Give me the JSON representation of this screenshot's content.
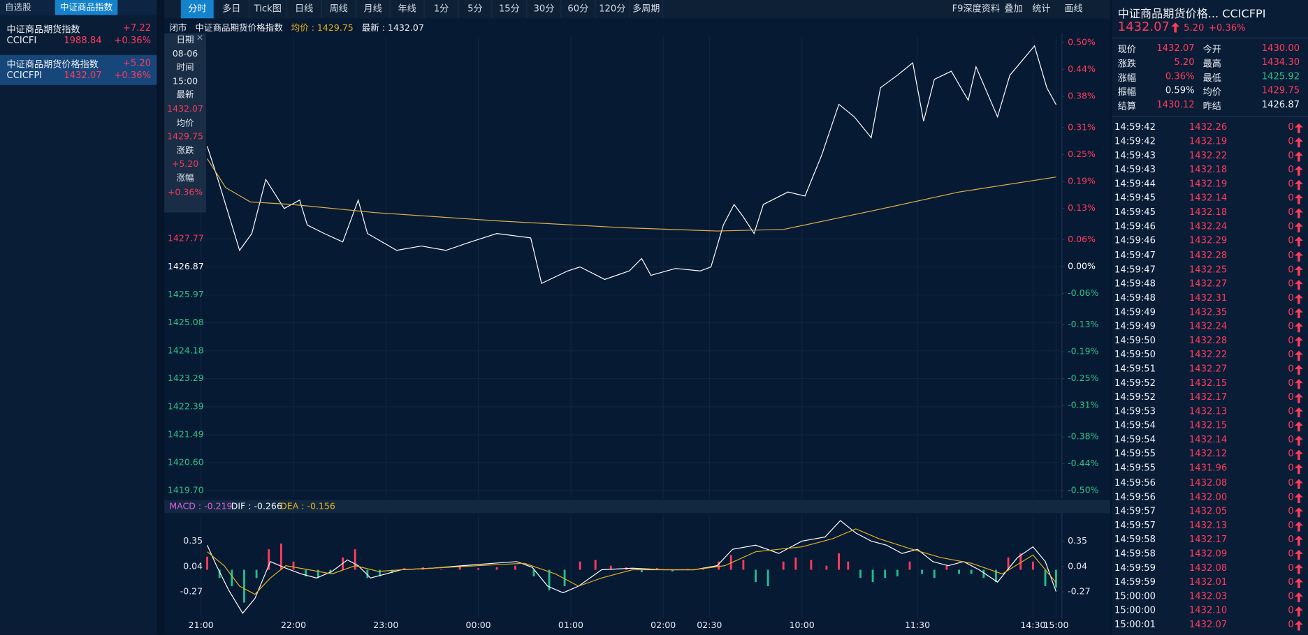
{
  "watchlist": {
    "tabs": [
      "自选股",
      "中证商品指数"
    ],
    "items": [
      {
        "name": "中证商品期货指数",
        "change": "+7.22",
        "code": "CCICFI",
        "price": "1988.84",
        "pct": "+0.36%"
      },
      {
        "name": "中证商品期货价格指数",
        "change": "+5.20",
        "code": "CCICFPI",
        "price": "1432.07",
        "pct": "+0.36%"
      }
    ]
  },
  "toolbar": {
    "left": [
      "分时",
      "多日",
      "Tick图",
      "日线",
      "周线",
      "月线",
      "年线",
      "1分",
      "5分",
      "15分",
      "30分",
      "60分",
      "120分",
      "多周期"
    ],
    "right": [
      "F9深度资料",
      "叠加",
      "统计",
      "画线"
    ]
  },
  "info_bar": {
    "status": "闭市",
    "name": "中证商品期货价格指数",
    "avg": "均价 : 1429.75",
    "last": "最新 : 1432.07"
  },
  "tooltip": [
    [
      "日期",
      "08-06"
    ],
    [
      "时间",
      "15:00"
    ],
    [
      "最新",
      "1432.07"
    ],
    [
      "均价",
      "1429.75"
    ],
    [
      "涨跌",
      "+5.20"
    ],
    [
      "涨幅",
      "+0.36%"
    ]
  ],
  "macd_header": [
    "MACD : -0.219",
    "DIF : -0.266",
    "DEA : -0.156"
  ],
  "quote": {
    "title": "中证商品期货价格... CCICFPI",
    "price": "1432.07",
    "change": "5.20",
    "pct": "+0.36%",
    "rows": [
      [
        "现价",
        "1432.07",
        "今开",
        "1430.00"
      ],
      [
        "涨跌",
        "5.20",
        "最高",
        "1434.30"
      ],
      [
        "涨幅",
        "0.36%",
        "最低",
        "1425.92"
      ],
      [
        "振幅",
        "0.59%",
        "均价",
        "1429.75"
      ],
      [
        "结算",
        "1430.12",
        "昨结",
        "1426.87"
      ]
    ]
  },
  "ticks": [
    [
      "14:59:42",
      "1432.26",
      "0"
    ],
    [
      "14:59:42",
      "1432.19",
      "0"
    ],
    [
      "14:59:43",
      "1432.22",
      "0"
    ],
    [
      "14:59:43",
      "1432.18",
      "0"
    ],
    [
      "14:59:44",
      "1432.19",
      "0"
    ],
    [
      "14:59:45",
      "1432.14",
      "0"
    ],
    [
      "14:59:45",
      "1432.18",
      "0"
    ],
    [
      "14:59:46",
      "1432.24",
      "0"
    ],
    [
      "14:59:46",
      "1432.29",
      "0"
    ],
    [
      "14:59:47",
      "1432.28",
      "0"
    ],
    [
      "14:59:47",
      "1432.25",
      "0"
    ],
    [
      "14:59:48",
      "1432.27",
      "0"
    ],
    [
      "14:59:48",
      "1432.31",
      "0"
    ],
    [
      "14:59:49",
      "1432.35",
      "0"
    ],
    [
      "14:59:49",
      "1432.24",
      "0"
    ],
    [
      "14:59:50",
      "1432.28",
      "0"
    ],
    [
      "14:59:50",
      "1432.22",
      "0"
    ],
    [
      "14:59:51",
      "1432.27",
      "0"
    ],
    [
      "14:59:52",
      "1432.15",
      "0"
    ],
    [
      "14:59:52",
      "1432.17",
      "0"
    ],
    [
      "14:59:53",
      "1432.13",
      "0"
    ],
    [
      "14:59:54",
      "1432.15",
      "0"
    ],
    [
      "14:59:54",
      "1432.14",
      "0"
    ],
    [
      "14:59:55",
      "1432.12",
      "0"
    ],
    [
      "14:59:55",
      "1431.96",
      "0"
    ],
    [
      "14:59:56",
      "1432.08",
      "0"
    ],
    [
      "14:59:56",
      "1432.00",
      "0"
    ],
    [
      "14:59:57",
      "1432.05",
      "0"
    ],
    [
      "14:59:57",
      "1432.13",
      "0"
    ],
    [
      "14:59:58",
      "1432.17",
      "0"
    ],
    [
      "14:59:58",
      "1432.09",
      "0"
    ],
    [
      "14:59:59",
      "1432.08",
      "0"
    ],
    [
      "14:59:59",
      "1432.01",
      "0"
    ],
    [
      "15:00:00",
      "1432.03",
      "0"
    ],
    [
      "15:00:00",
      "1432.10",
      "0"
    ],
    [
      "15:00:01",
      "1432.07",
      "0"
    ]
  ],
  "chart_data": [
    {
      "type": "line",
      "xlim": [
        0,
        555
      ],
      "xticks": [
        {
          "value": 0,
          "label": "21:00"
        },
        {
          "value": 60,
          "label": "22:00"
        },
        {
          "value": 120,
          "label": "23:00"
        },
        {
          "value": 180,
          "label": "00:00"
        },
        {
          "value": 240,
          "label": "01:00"
        },
        {
          "value": 300,
          "label": "02:00"
        },
        {
          "value": 330,
          "label": "02:30"
        },
        {
          "value": 390,
          "label": "10:00"
        },
        {
          "value": 465,
          "label": "11:30"
        },
        {
          "value": 540,
          "label": "14:30"
        },
        {
          "value": 555,
          "label": "15:00"
        }
      ],
      "ylim": [
        1419.7,
        1434.06
      ],
      "yticks": [
        1427.77,
        1426.87,
        1425.97,
        1425.08,
        1424.18,
        1423.29,
        1422.39,
        1421.49,
        {
          "value": 1420.6,
          "label": "1420.60"
        },
        {
          "value": 1419.7,
          "label": "1419.70"
        }
      ],
      "y2lim": [
        -0.5,
        0.5
      ],
      "y2ticks": [
        {
          "value": 0.5,
          "label": "0.50%"
        },
        {
          "value": 0.44,
          "label": "0.44%"
        },
        {
          "value": 0.38,
          "label": "0.38%"
        },
        {
          "value": 0.31,
          "label": "0.31%"
        },
        {
          "value": 0.25,
          "label": "0.25%"
        },
        {
          "value": 0.19,
          "label": "0.19%"
        },
        {
          "value": 0.13,
          "label": "0.13%"
        },
        {
          "value": 0.06,
          "label": "0.06%"
        },
        {
          "value": 0,
          "label": "0.00%"
        },
        {
          "value": -0.06,
          "label": "-0.06%"
        },
        {
          "value": -0.13,
          "label": "-0.13%"
        },
        {
          "value": -0.19,
          "label": "-0.19%"
        },
        {
          "value": -0.25,
          "label": "-0.25%"
        },
        {
          "value": -0.31,
          "label": "-0.31%"
        },
        {
          "value": -0.38,
          "label": "-0.38%"
        },
        {
          "value": -0.44,
          "label": "-0.44%"
        },
        {
          "value": -0.5,
          "label": "-0.50%"
        }
      ],
      "grid": true,
      "up_color": "#ff3b5c",
      "down_color": "#2ec28a",
      "series": [
        {
          "color": "#ffffff",
          "x": [
            4,
            11,
            25,
            33,
            42,
            54,
            64,
            69,
            80,
            92,
            102,
            108,
            127,
            143,
            159,
            175,
            192,
            214,
            221,
            238,
            246,
            262,
            278,
            286,
            292,
            308,
            324,
            331,
            339,
            346,
            352,
            359,
            365,
            381,
            392,
            403,
            414,
            424,
            435,
            441,
            452,
            462,
            469,
            476,
            487,
            498,
            503,
            517,
            525,
            541,
            549,
            555
          ],
          "values": [
            1430.74,
            1429.67,
            1427.4,
            1427.94,
            1429.67,
            1428.74,
            1429.01,
            1428.21,
            1427.94,
            1427.67,
            1429.01,
            1427.94,
            1427.4,
            1427.54,
            1427.4,
            1427.67,
            1427.94,
            1427.8,
            1426.34,
            1426.74,
            1426.87,
            1426.47,
            1426.74,
            1427.14,
            1426.6,
            1426.82,
            1426.74,
            1426.87,
            1428.21,
            1428.87,
            1428.47,
            1427.94,
            1428.87,
            1429.27,
            1429.14,
            1430.47,
            1432.08,
            1431.68,
            1431.01,
            1432.61,
            1433.01,
            1433.41,
            1431.54,
            1432.88,
            1433.14,
            1432.21,
            1433.28,
            1431.68,
            1433.01,
            1433.95,
            1432.61,
            1432.07
          ]
        },
        {
          "color": "#e0b04c",
          "x": [
            4,
            16,
            32,
            59,
            113,
            194,
            276,
            335,
            378,
            438,
            492,
            555
          ],
          "values": [
            1430.34,
            1429.41,
            1428.95,
            1428.87,
            1428.61,
            1428.34,
            1428.12,
            1428.02,
            1428.07,
            1428.69,
            1429.27,
            1429.75
          ]
        }
      ]
    },
    {
      "type": "macd",
      "xlim": [
        0,
        555
      ],
      "ylim": [
        -0.57,
        0.65
      ],
      "yticks": [
        0.35,
        0.04,
        -0.27
      ],
      "up_color": "#ff3b5c",
      "down_color": "#1fbf8f",
      "series": [
        {
          "color": "#ffffff",
          "x": [
            4,
            10,
            18,
            27,
            35,
            45,
            55,
            65,
            75,
            85,
            95,
            102,
            110,
            120,
            130,
            150,
            170,
            190,
            205,
            215,
            225,
            235,
            245,
            260,
            280,
            300,
            320,
            335,
            345,
            360,
            375,
            390,
            405,
            415,
            425,
            435,
            445,
            455,
            465,
            475,
            485,
            495,
            505,
            517,
            530,
            540,
            548,
            555
          ],
          "values": [
            0.3,
            0.05,
            -0.25,
            -0.53,
            -0.35,
            0.1,
            0.02,
            -0.05,
            -0.1,
            -0.02,
            0.12,
            0.05,
            -0.1,
            -0.05,
            0.0,
            0.02,
            0.05,
            0.08,
            0.1,
            0.03,
            -0.2,
            -0.28,
            -0.2,
            0.0,
            0.02,
            0.0,
            0.0,
            0.05,
            0.25,
            0.3,
            0.2,
            0.35,
            0.4,
            0.6,
            0.45,
            0.35,
            0.3,
            0.2,
            0.25,
            0.1,
            0.05,
            0.1,
            0.0,
            -0.15,
            0.15,
            0.28,
            0.1,
            -0.266
          ]
        },
        {
          "color": "#e6b020",
          "x": [
            4,
            15,
            25,
            35,
            45,
            55,
            70,
            85,
            100,
            115,
            130,
            160,
            190,
            210,
            230,
            245,
            260,
            280,
            320,
            340,
            360,
            390,
            410,
            425,
            440,
            460,
            480,
            500,
            520,
            540,
            555
          ],
          "values": [
            0.22,
            0.05,
            -0.2,
            -0.3,
            -0.1,
            0.05,
            0.0,
            -0.05,
            0.05,
            -0.02,
            0.0,
            0.03,
            0.06,
            0.08,
            -0.05,
            -0.2,
            -0.1,
            0.0,
            0.0,
            0.05,
            0.22,
            0.28,
            0.38,
            0.5,
            0.38,
            0.26,
            0.15,
            0.08,
            -0.05,
            0.18,
            -0.156
          ]
        }
      ],
      "bars": {
        "x": [
          4,
          12,
          20,
          28,
          36,
          44,
          52,
          60,
          68,
          76,
          84,
          92,
          100,
          108,
          116,
          124,
          132,
          144,
          156,
          168,
          180,
          192,
          204,
          216,
          226,
          236,
          246,
          256,
          266,
          276,
          286,
          296,
          306,
          316,
          326,
          336,
          344,
          352,
          360,
          368,
          378,
          386,
          396,
          406,
          414,
          420,
          428,
          436,
          444,
          452,
          460,
          468,
          476,
          484,
          492,
          500,
          508,
          516,
          524,
          532,
          540,
          548,
          555
        ],
        "values": [
          0.16,
          -0.1,
          -0.2,
          -0.4,
          -0.1,
          0.25,
          0.32,
          0.1,
          -0.08,
          -0.1,
          -0.05,
          0.15,
          0.25,
          -0.1,
          -0.08,
          -0.04,
          0.02,
          0.03,
          0.01,
          0.04,
          0.02,
          0.03,
          0.05,
          -0.08,
          -0.25,
          -0.2,
          0.1,
          0.12,
          0.05,
          0.03,
          -0.03,
          0.02,
          -0.02,
          0.01,
          0.02,
          0.1,
          0.18,
          0.12,
          -0.15,
          -0.2,
          0.1,
          0.15,
          0.12,
          0.05,
          0.2,
          0.1,
          -0.1,
          -0.15,
          -0.1,
          -0.08,
          0.1,
          -0.05,
          -0.1,
          0.05,
          -0.05,
          -0.05,
          -0.1,
          -0.15,
          0.15,
          0.2,
          0.1,
          -0.2,
          -0.219
        ]
      }
    }
  ]
}
